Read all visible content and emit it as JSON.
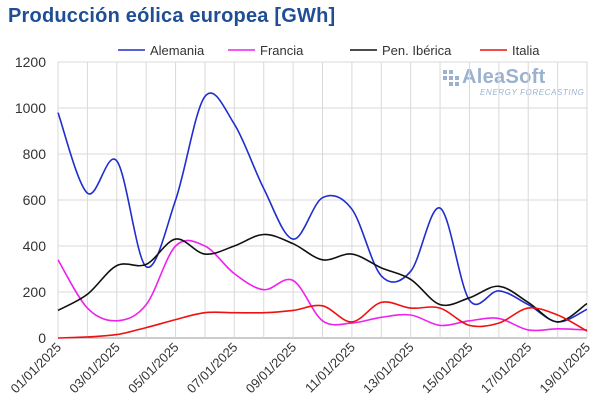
{
  "header": {
    "title": "Producción eólica europea [GWh]"
  },
  "logo": {
    "name": "AleaSoft",
    "tagline": "ENERGY FORECASTING"
  },
  "chart_data": {
    "type": "line",
    "title": "Producción eólica europea [GWh]",
    "xlabel": "",
    "ylabel": "",
    "ylim": [
      0,
      1200
    ],
    "yticks": [
      0,
      200,
      400,
      600,
      800,
      1000,
      1200
    ],
    "x_start": "01/01/2025",
    "x_end": "19/01/2025",
    "xtick_labels": [
      "01/01/2025",
      "03/01/2025",
      "05/01/2025",
      "07/01/2025",
      "09/01/2025",
      "11/01/2025",
      "13/01/2025",
      "15/01/2025",
      "17/01/2025",
      "19/01/2025"
    ],
    "grid": true,
    "legend_position": "top",
    "x": [
      "01/01",
      "02/01",
      "03/01",
      "04/01",
      "05/01",
      "06/01",
      "07/01",
      "08/01",
      "09/01",
      "10/01",
      "11/01",
      "12/01",
      "13/01",
      "14/01",
      "15/01",
      "16/01",
      "17/01",
      "18/01",
      "19/01"
    ],
    "series": [
      {
        "name": "Alemania",
        "color": "#1f2ecc",
        "values": [
          980,
          630,
          770,
          310,
          600,
          1050,
          930,
          650,
          430,
          610,
          560,
          270,
          290,
          565,
          165,
          205,
          145,
          70,
          125
        ]
      },
      {
        "name": "Francia",
        "color": "#ee22ee",
        "values": [
          340,
          130,
          75,
          145,
          400,
          400,
          280,
          210,
          250,
          75,
          65,
          90,
          100,
          55,
          75,
          85,
          35,
          40,
          35
        ]
      },
      {
        "name": "Pen. Ibérica",
        "color": "#111111",
        "values": [
          120,
          190,
          315,
          320,
          430,
          365,
          400,
          450,
          410,
          340,
          365,
          305,
          255,
          145,
          175,
          225,
          155,
          70,
          150
        ]
      },
      {
        "name": "Italia",
        "color": "#ee1111",
        "values": [
          0,
          5,
          15,
          45,
          80,
          110,
          110,
          110,
          120,
          140,
          70,
          155,
          130,
          130,
          55,
          65,
          130,
          100,
          30
        ]
      }
    ]
  }
}
